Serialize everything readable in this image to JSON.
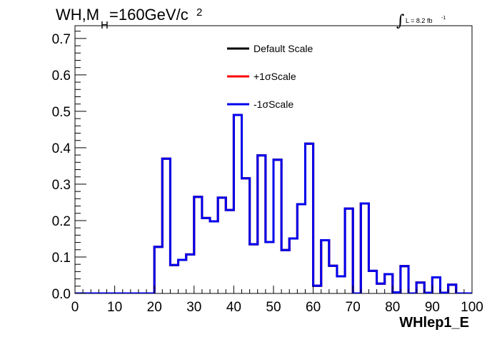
{
  "chart_data": {
    "type": "line",
    "title_main": "WH,M",
    "title_sub": "H",
    "title_rest": "=160GeV/c",
    "title_sup": "2",
    "lumi_integral": "∫",
    "lumi_text": "L = 8.2 fb",
    "lumi_sup": "-1",
    "xlabel": "WHlep1_E",
    "ylabel": "",
    "xlim": [
      0,
      100
    ],
    "ylim": [
      0,
      0.735
    ],
    "xticks": [
      "0",
      "10",
      "20",
      "30",
      "40",
      "50",
      "60",
      "70",
      "80",
      "90",
      "100"
    ],
    "yticks": [
      "0.0",
      "0.1",
      "0.2",
      "0.3",
      "0.4",
      "0.5",
      "0.6",
      "0.7"
    ],
    "bin_edges": [
      0,
      2,
      4,
      6,
      8,
      10,
      12,
      14,
      16,
      18,
      20,
      22,
      24,
      26,
      28,
      30,
      32,
      34,
      36,
      38,
      40,
      42,
      44,
      46,
      48,
      50,
      52,
      54,
      56,
      58,
      60,
      62,
      64,
      66,
      68,
      70,
      72,
      74,
      76,
      78,
      80,
      82,
      84,
      86,
      88,
      90,
      92,
      94,
      96,
      98,
      100
    ],
    "series": [
      {
        "name": "Default Scale",
        "color": "#000000",
        "values": [
          0,
          0,
          0,
          0,
          0,
          0,
          0,
          0,
          0,
          0,
          0.128,
          0.37,
          0.078,
          0.092,
          0.107,
          0.265,
          0.207,
          0.198,
          0.263,
          0.229,
          0.49,
          0.316,
          0.135,
          0.379,
          0.141,
          0.367,
          0.119,
          0.151,
          0.245,
          0.411,
          0.021,
          0.146,
          0.076,
          0.047,
          0.233,
          0,
          0.247,
          0.062,
          0.027,
          0.053,
          0.003,
          0.075,
          0,
          0.03,
          0.002,
          0.044,
          0.002,
          0.024,
          0,
          0
        ]
      },
      {
        "name": "+1σScale",
        "color": "#ff0000",
        "values": [
          0,
          0,
          0,
          0,
          0,
          0,
          0,
          0,
          0,
          0,
          0.128,
          0.37,
          0.078,
          0.092,
          0.107,
          0.265,
          0.207,
          0.198,
          0.263,
          0.229,
          0.49,
          0.316,
          0.135,
          0.379,
          0.141,
          0.367,
          0.119,
          0.151,
          0.245,
          0.411,
          0.021,
          0.146,
          0.076,
          0.047,
          0.233,
          0,
          0.247,
          0.062,
          0.027,
          0.053,
          0.003,
          0.075,
          0,
          0.03,
          0.002,
          0.044,
          0.002,
          0.024,
          0,
          0
        ]
      },
      {
        "name": "-1σScale",
        "color": "#0000ee",
        "values": [
          0,
          0,
          0,
          0,
          0,
          0,
          0,
          0,
          0,
          0,
          0.128,
          0.37,
          0.078,
          0.092,
          0.107,
          0.265,
          0.207,
          0.198,
          0.263,
          0.229,
          0.49,
          0.316,
          0.135,
          0.379,
          0.141,
          0.367,
          0.119,
          0.151,
          0.245,
          0.411,
          0.021,
          0.146,
          0.076,
          0.047,
          0.233,
          0,
          0.247,
          0.062,
          0.027,
          0.053,
          0.003,
          0.075,
          0,
          0.03,
          0.002,
          0.044,
          0.002,
          0.024,
          0,
          0
        ]
      }
    ],
    "legend_position": "top-center",
    "grid": false
  }
}
